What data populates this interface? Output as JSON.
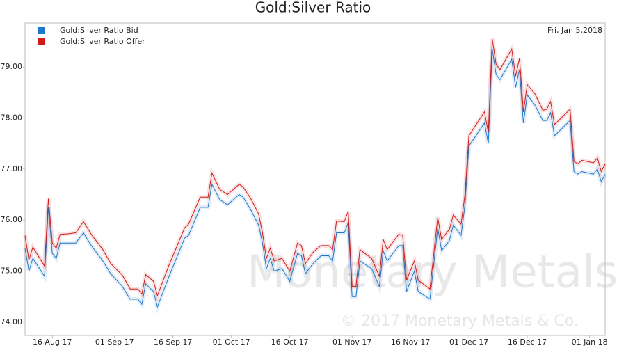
{
  "chart_data": {
    "type": "line",
    "title": "Gold:Silver Ratio",
    "annotation": "Fri, Jan 5,2018",
    "watermark": "Monetary Metals",
    "copyright": "© 2017 Monetary Metals & Co.",
    "x": [
      "2017-08-09",
      "2017-08-10",
      "2017-08-11",
      "2017-08-14",
      "2017-08-15",
      "2017-08-16",
      "2017-08-17",
      "2017-08-18",
      "2017-08-20",
      "2017-08-22",
      "2017-08-24",
      "2017-08-26",
      "2017-08-29",
      "2017-08-31",
      "2017-09-03",
      "2017-09-05",
      "2017-09-07",
      "2017-09-08",
      "2017-09-09",
      "2017-09-11",
      "2017-09-12",
      "2017-09-15",
      "2017-09-19",
      "2017-09-20",
      "2017-09-23",
      "2017-09-25",
      "2017-09-26",
      "2017-09-28",
      "2017-09-30",
      "2017-10-03",
      "2017-10-04",
      "2017-10-06",
      "2017-10-08",
      "2017-10-09",
      "2017-10-10",
      "2017-10-11",
      "2017-10-12",
      "2017-10-14",
      "2017-10-16",
      "2017-10-18",
      "2017-10-19",
      "2017-10-20",
      "2017-10-22",
      "2017-10-24",
      "2017-10-26",
      "2017-10-27",
      "2017-10-28",
      "2017-10-30",
      "2017-10-31",
      "2017-11-01",
      "2017-11-02",
      "2017-11-03",
      "2017-11-06",
      "2017-11-08",
      "2017-11-09",
      "2017-11-10",
      "2017-11-13",
      "2017-11-14",
      "2017-11-15",
      "2017-11-17",
      "2017-11-18",
      "2017-11-21",
      "2017-11-23",
      "2017-11-24",
      "2017-11-26",
      "2017-11-27",
      "2017-11-29",
      "2017-11-30",
      "2017-12-01",
      "2017-12-05",
      "2017-12-06",
      "2017-12-07",
      "2017-12-08",
      "2017-12-09",
      "2017-12-12",
      "2017-12-13",
      "2017-12-14",
      "2017-12-15",
      "2017-12-16",
      "2017-12-18",
      "2017-12-20",
      "2017-12-21",
      "2017-12-22",
      "2017-12-23",
      "2017-12-27",
      "2017-12-28",
      "2017-12-29",
      "2017-12-30",
      "2018-01-02",
      "2018-01-03",
      "2018-01-04",
      "2018-01-05"
    ],
    "series": [
      {
        "name": "Gold:Silver Ratio Bid",
        "color": "#1f77c8",
        "values": [
          75.45,
          75.0,
          75.25,
          74.9,
          76.25,
          75.35,
          75.25,
          75.55,
          75.55,
          75.55,
          75.75,
          75.5,
          75.2,
          74.95,
          74.7,
          74.45,
          74.45,
          74.35,
          74.75,
          74.6,
          74.3,
          74.9,
          75.65,
          75.7,
          76.25,
          76.25,
          76.7,
          76.4,
          76.3,
          76.5,
          76.45,
          76.2,
          75.9,
          75.55,
          75.05,
          75.25,
          75.0,
          75.05,
          74.8,
          75.35,
          75.3,
          74.95,
          75.15,
          75.3,
          75.3,
          75.2,
          75.75,
          75.75,
          75.95,
          74.5,
          74.5,
          75.2,
          75.05,
          74.7,
          75.4,
          75.2,
          75.5,
          75.5,
          74.6,
          75.0,
          74.6,
          74.45,
          75.85,
          75.4,
          75.6,
          75.9,
          75.7,
          76.3,
          77.45,
          77.9,
          77.5,
          79.35,
          78.85,
          78.75,
          79.15,
          78.6,
          78.95,
          77.9,
          78.45,
          78.25,
          77.95,
          77.95,
          78.1,
          77.65,
          77.95,
          76.95,
          76.9,
          76.95,
          76.9,
          77.0,
          76.75,
          76.9
        ]
      },
      {
        "name": "Gold:Silver Ratio Offer",
        "color": "#d11a1a",
        "values": [
          75.7,
          75.22,
          75.47,
          75.1,
          76.42,
          75.55,
          75.45,
          75.72,
          75.73,
          75.75,
          75.97,
          75.72,
          75.42,
          75.15,
          74.92,
          74.65,
          74.65,
          74.55,
          74.93,
          74.8,
          74.52,
          75.12,
          75.85,
          75.92,
          76.45,
          76.45,
          76.92,
          76.6,
          76.5,
          76.7,
          76.65,
          76.42,
          76.12,
          75.75,
          75.25,
          75.45,
          75.2,
          75.25,
          75.0,
          75.55,
          75.5,
          75.15,
          75.37,
          75.5,
          75.5,
          75.42,
          75.98,
          75.97,
          76.17,
          74.7,
          74.7,
          75.42,
          75.25,
          74.9,
          75.62,
          75.42,
          75.72,
          75.7,
          74.82,
          75.2,
          74.82,
          74.65,
          76.05,
          75.62,
          75.82,
          76.1,
          75.92,
          76.5,
          77.65,
          78.12,
          77.72,
          79.55,
          79.05,
          78.95,
          79.35,
          78.82,
          79.17,
          78.12,
          78.65,
          78.47,
          78.15,
          78.17,
          78.32,
          77.87,
          78.17,
          77.15,
          77.1,
          77.17,
          77.12,
          77.22,
          76.95,
          77.1
        ]
      }
    ],
    "xlim": [
      "2017-08-09",
      "2018-01-05"
    ],
    "xticks": [
      {
        "value": "2017-08-16",
        "label": "16 Aug 17"
      },
      {
        "value": "2017-09-01",
        "label": "01 Sep 17"
      },
      {
        "value": "2017-09-16",
        "label": "16 Sep 17"
      },
      {
        "value": "2017-10-01",
        "label": "01 Oct 17"
      },
      {
        "value": "2017-10-16",
        "label": "16 Oct 17"
      },
      {
        "value": "2017-11-01",
        "label": "01 Nov 17"
      },
      {
        "value": "2017-11-16",
        "label": "16 Nov 17"
      },
      {
        "value": "2017-12-01",
        "label": "01 Dec 17"
      },
      {
        "value": "2017-12-16",
        "label": "16 Dec 17"
      },
      {
        "value": "2018-01-01",
        "label": "01 Jan 18"
      }
    ],
    "ylim": [
      73.74,
      79.86
    ],
    "yticks": [
      {
        "value": 74,
        "label": "74.00"
      },
      {
        "value": 75,
        "label": "75.00"
      },
      {
        "value": 76,
        "label": "76.00"
      },
      {
        "value": 77,
        "label": "77.00"
      },
      {
        "value": 78,
        "label": "78.00"
      },
      {
        "value": 79,
        "label": "79.00"
      }
    ],
    "grid": false,
    "legend": "upper left"
  }
}
